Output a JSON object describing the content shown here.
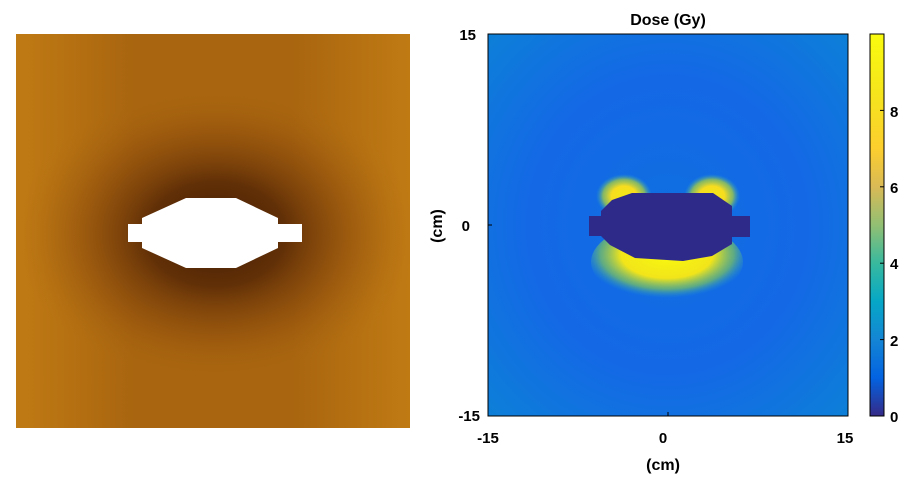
{
  "film_image": {
    "background_color": "#b06c10",
    "shadow_color": "#4a1f05",
    "object_color": "#ffffff"
  },
  "chart_data": {
    "type": "heatmap",
    "title": "Dose (Gy)",
    "xlabel": "(cm)",
    "ylabel": "(cm)",
    "xlim": [
      -15,
      15
    ],
    "ylim": [
      -15,
      15
    ],
    "x_ticks": [
      "-15",
      "0",
      "15"
    ],
    "y_ticks": [
      "15",
      "0",
      "-15"
    ],
    "colorbar": {
      "range": [
        0,
        10
      ],
      "ticks": [
        "0",
        "2",
        "4",
        "6",
        "8"
      ]
    },
    "colormap": "parula",
    "description_values": {
      "background_dose": 1.5,
      "high_dose_regions_near_object": 9.5,
      "object_region_dose": 0
    }
  }
}
